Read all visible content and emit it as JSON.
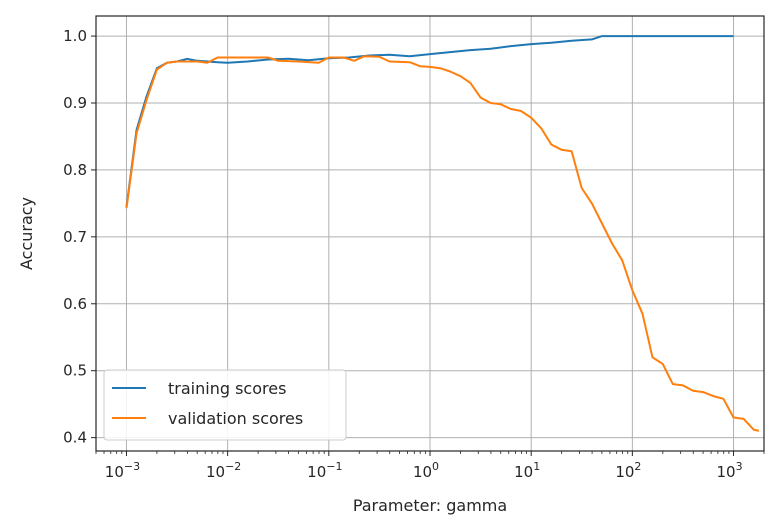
{
  "chart_data": {
    "type": "line",
    "xscale": "log",
    "xlabel": "Parameter: gamma",
    "ylabel": "Accuracy",
    "xlim": [
      0.0005,
      2000
    ],
    "ylim": [
      0.38,
      1.03
    ],
    "grid": true,
    "legend_position": "lower-left",
    "x_ticks": [
      {
        "value": 0.001,
        "base": "10",
        "exp": "−3"
      },
      {
        "value": 0.01,
        "base": "10",
        "exp": "−2"
      },
      {
        "value": 0.1,
        "base": "10",
        "exp": "−1"
      },
      {
        "value": 1,
        "base": "10",
        "exp": "0"
      },
      {
        "value": 10,
        "base": "10",
        "exp": "1"
      },
      {
        "value": 100,
        "base": "10",
        "exp": "2"
      },
      {
        "value": 1000,
        "base": "10",
        "exp": "3"
      }
    ],
    "y_ticks": [
      {
        "value": 0.4,
        "label": "0.4"
      },
      {
        "value": 0.5,
        "label": "0.5"
      },
      {
        "value": 0.6,
        "label": "0.6"
      },
      {
        "value": 0.7,
        "label": "0.7"
      },
      {
        "value": 0.8,
        "label": "0.8"
      },
      {
        "value": 0.9,
        "label": "0.9"
      },
      {
        "value": 1.0,
        "label": "1.0"
      }
    ],
    "series": [
      {
        "name": "training scores",
        "color": "#1f77b4",
        "points": [
          [
            0.001,
            0.745
          ],
          [
            0.00126,
            0.86
          ],
          [
            0.00158,
            0.91
          ],
          [
            0.002,
            0.952
          ],
          [
            0.00251,
            0.96
          ],
          [
            0.00316,
            0.962
          ],
          [
            0.00398,
            0.966
          ],
          [
            0.00501,
            0.963
          ],
          [
            0.00631,
            0.962
          ],
          [
            0.00794,
            0.961
          ],
          [
            0.01,
            0.96
          ],
          [
            0.0158,
            0.962
          ],
          [
            0.0251,
            0.965
          ],
          [
            0.0398,
            0.966
          ],
          [
            0.0631,
            0.964
          ],
          [
            0.1,
            0.967
          ],
          [
            0.158,
            0.968
          ],
          [
            0.251,
            0.971
          ],
          [
            0.398,
            0.972
          ],
          [
            0.631,
            0.97
          ],
          [
            1,
            0.973
          ],
          [
            1.58,
            0.976
          ],
          [
            2.51,
            0.979
          ],
          [
            3.98,
            0.981
          ],
          [
            6.31,
            0.985
          ],
          [
            10,
            0.988
          ],
          [
            15.8,
            0.99
          ],
          [
            25.1,
            0.993
          ],
          [
            39.8,
            0.995
          ],
          [
            50.1,
            1.0
          ],
          [
            100,
            1.0
          ],
          [
            1000,
            1.0
          ]
        ]
      },
      {
        "name": "validation scores",
        "color": "#ff7f0e",
        "points": [
          [
            0.001,
            0.743
          ],
          [
            0.00126,
            0.855
          ],
          [
            0.00158,
            0.905
          ],
          [
            0.002,
            0.95
          ],
          [
            0.00251,
            0.96
          ],
          [
            0.00316,
            0.962
          ],
          [
            0.00501,
            0.962
          ],
          [
            0.00631,
            0.96
          ],
          [
            0.00794,
            0.968
          ],
          [
            0.01,
            0.968
          ],
          [
            0.0158,
            0.968
          ],
          [
            0.0251,
            0.968
          ],
          [
            0.0316,
            0.963
          ],
          [
            0.0501,
            0.962
          ],
          [
            0.0794,
            0.96
          ],
          [
            0.1,
            0.968
          ],
          [
            0.141,
            0.968
          ],
          [
            0.178,
            0.963
          ],
          [
            0.224,
            0.97
          ],
          [
            0.316,
            0.969
          ],
          [
            0.398,
            0.962
          ],
          [
            0.631,
            0.961
          ],
          [
            0.794,
            0.955
          ],
          [
            1,
            0.954
          ],
          [
            1.26,
            0.952
          ],
          [
            1.58,
            0.947
          ],
          [
            2,
            0.94
          ],
          [
            2.51,
            0.93
          ],
          [
            3.16,
            0.908
          ],
          [
            3.98,
            0.9
          ],
          [
            5.01,
            0.898
          ],
          [
            6.31,
            0.891
          ],
          [
            7.94,
            0.888
          ],
          [
            10,
            0.878
          ],
          [
            12.6,
            0.862
          ],
          [
            15.8,
            0.838
          ],
          [
            20,
            0.83
          ],
          [
            25.1,
            0.828
          ],
          [
            31.6,
            0.773
          ],
          [
            39.8,
            0.75
          ],
          [
            50.1,
            0.72
          ],
          [
            63.1,
            0.69
          ],
          [
            79.4,
            0.665
          ],
          [
            100,
            0.62
          ],
          [
            126,
            0.585
          ],
          [
            158,
            0.52
          ],
          [
            200,
            0.51
          ],
          [
            251,
            0.48
          ],
          [
            316,
            0.478
          ],
          [
            398,
            0.47
          ],
          [
            501,
            0.468
          ],
          [
            631,
            0.462
          ],
          [
            794,
            0.458
          ],
          [
            1000,
            0.43
          ],
          [
            1260,
            0.428
          ],
          [
            1580,
            0.412
          ],
          [
            1780,
            0.41
          ]
        ]
      }
    ]
  }
}
